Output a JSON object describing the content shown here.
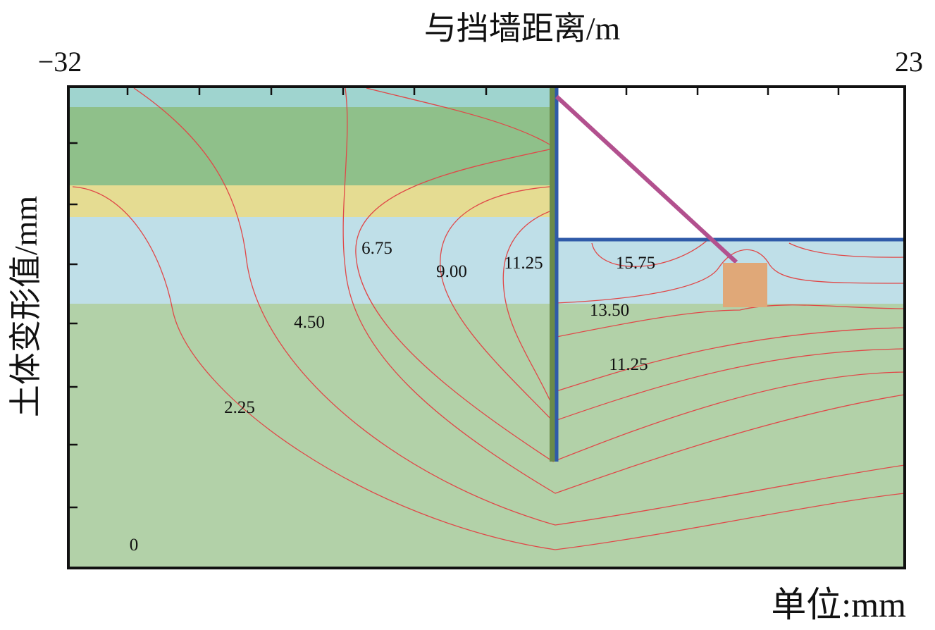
{
  "title": "与挡墙距离/m",
  "x_axis": {
    "left": "−32",
    "right": "23"
  },
  "y_axis_label": "土体变形值/mm",
  "unit_note": "单位:mm",
  "contour_labels": [
    "6.75",
    "9.00",
    "11.25",
    "15.75",
    "13.50",
    "4.50",
    "11.25",
    "2.25",
    "0"
  ]
}
